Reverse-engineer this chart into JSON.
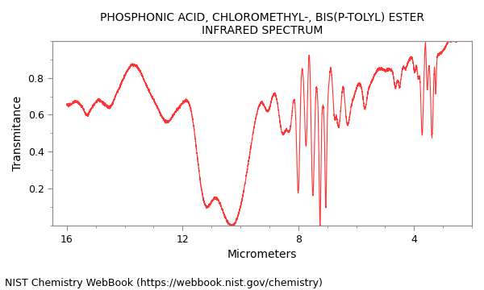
{
  "title_line1": "PHOSPHONIC ACID, CHLOROMETHYL-, BIS(P-TOLYL) ESTER",
  "title_line2": "INFRARED SPECTRUM",
  "xlabel": "Micrometers",
  "ylabel": "Transmitance",
  "footnote": "NIST Chemistry WebBook (https://webbook.nist.gov/chemistry)",
  "xlim": [
    16.5,
    2.0
  ],
  "ylim": [
    0.0,
    1.0
  ],
  "xticks": [
    16,
    12,
    8,
    4
  ],
  "yticks": [
    0.2,
    0.4,
    0.6,
    0.8
  ],
  "line_color": "#ff3333",
  "bg_color": "#ffffff",
  "title_fontsize": 10,
  "axis_fontsize": 10,
  "footnote_fontsize": 9
}
